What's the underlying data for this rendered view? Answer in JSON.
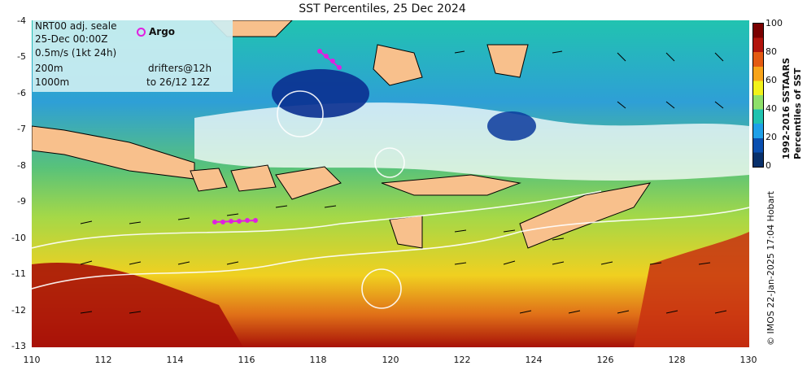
{
  "title": "SST Percentiles, 25 Dec 2024",
  "legend": {
    "product": "NRT00 adj. seale",
    "time": "25-Dec 00:00Z",
    "arrow_scale": "0.5m/s (1kt 24h)",
    "contour1": "200m",
    "contour2": "1000m",
    "argo_label": "Argo",
    "drifters": "drifters@12h",
    "drifters_to": "to 26/12 12Z"
  },
  "x_ticks": [
    "110",
    "112",
    "114",
    "116",
    "118",
    "120",
    "122",
    "124",
    "126",
    "128",
    "130"
  ],
  "y_ticks": [
    "-4",
    "-5",
    "-6",
    "-7",
    "-8",
    "-9",
    "-10",
    "-11",
    "-12",
    "-13"
  ],
  "colorbar": {
    "ticks": [
      "100",
      "80",
      "60",
      "40",
      "20",
      "0"
    ],
    "title_line1": "1992-2016 SSTAARS",
    "title_line2": "Percentiles of SST",
    "colors": [
      "#08306b",
      "#0a4fb0",
      "#1fa0e8",
      "#21c3b0",
      "#8ee06a",
      "#f2f21a",
      "#f8a41a",
      "#e45a12",
      "#b2140c",
      "#7a0000"
    ]
  },
  "credit": "© IMOS 22-Jan-2025 17:04 Hobart",
  "colors": {
    "land": "#f8c08c",
    "argo": "#e020e0",
    "contour": "#ffffff"
  }
}
